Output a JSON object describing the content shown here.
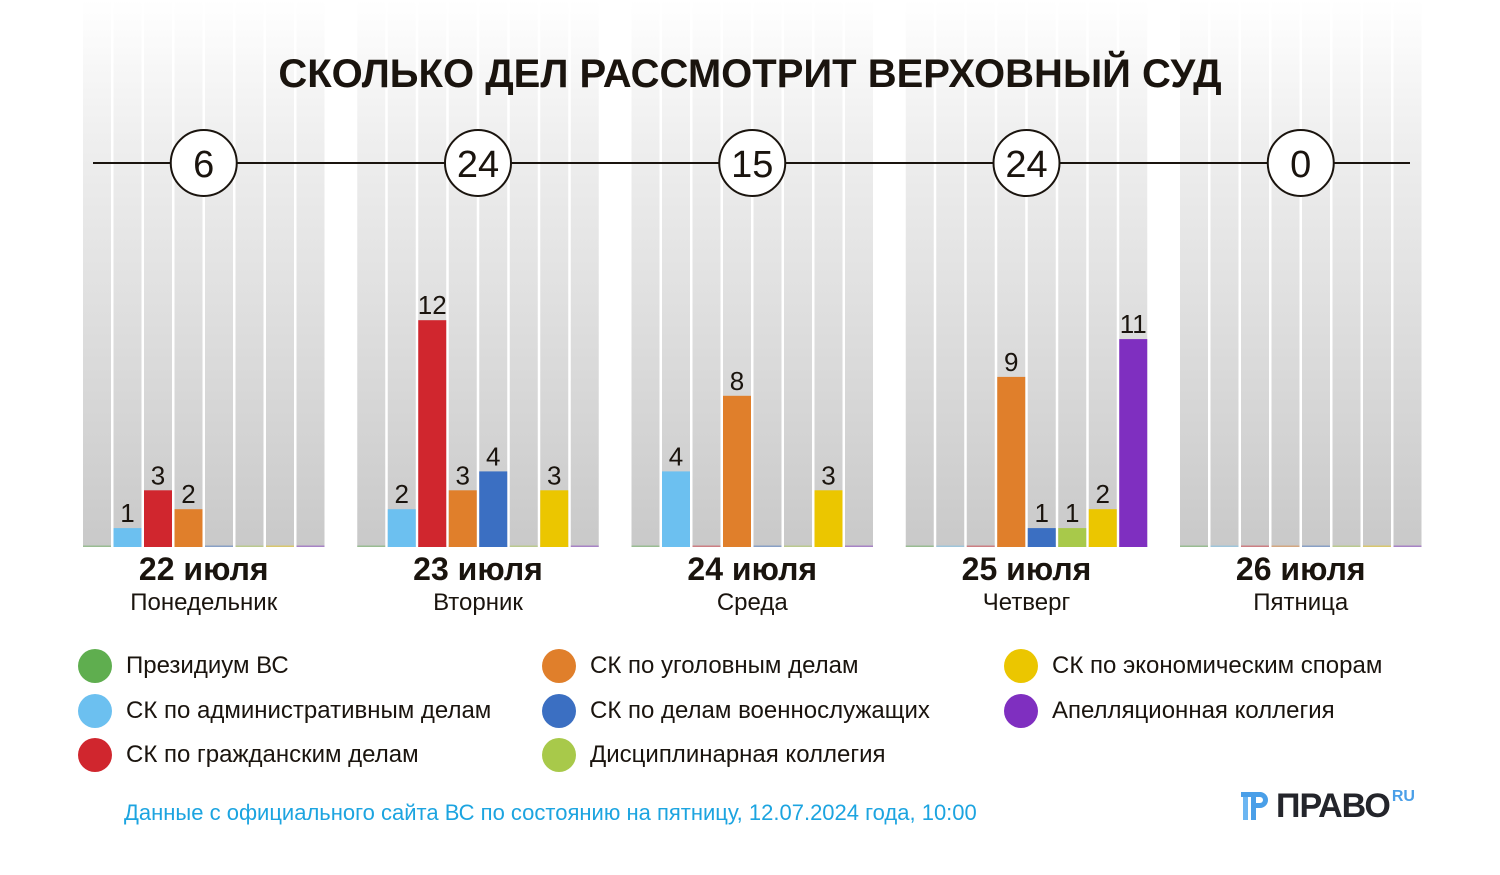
{
  "chart_data": {
    "type": "bar",
    "title": "СКОЛЬКО ДЕЛ РАССМОТРИТ ВЕРХОВНЫЙ СУД",
    "xlabel": "",
    "ylabel": "",
    "categories": [
      {
        "date": "22 июля",
        "weekday": "Понедельник",
        "total": "6"
      },
      {
        "date": "23 июля",
        "weekday": "Вторник",
        "total": "24"
      },
      {
        "date": "24 июля",
        "weekday": "Среда",
        "total": "15"
      },
      {
        "date": "25 июля",
        "weekday": "Четверг",
        "total": "24"
      },
      {
        "date": "26 июля",
        "weekday": "Пятница",
        "total": "0"
      }
    ],
    "series": [
      {
        "name": "Президиум ВС",
        "color": "#5fae4f",
        "values": [
          0,
          0,
          0,
          0,
          0
        ]
      },
      {
        "name": "СК по административным делам",
        "color": "#6cc0f0",
        "values": [
          1,
          2,
          4,
          0,
          0
        ]
      },
      {
        "name": "СК по гражданским делам",
        "color": "#d0262e",
        "values": [
          3,
          12,
          0,
          0,
          0
        ]
      },
      {
        "name": "СК по уголовным делам",
        "color": "#e07f2b",
        "values": [
          2,
          3,
          8,
          9,
          0
        ]
      },
      {
        "name": "СК по делам военнослужащих",
        "color": "#3b6fc2",
        "values": [
          0,
          4,
          0,
          1,
          0
        ]
      },
      {
        "name": "Дисциплинарная коллегия",
        "color": "#a8c94a",
        "values": [
          0,
          0,
          0,
          1,
          0
        ]
      },
      {
        "name": "СК по экономическим спорам",
        "color": "#ebc600",
        "values": [
          0,
          3,
          3,
          2,
          0
        ]
      },
      {
        "name": "Апелляционная коллегия",
        "color": "#7f2fc0",
        "values": [
          0,
          0,
          0,
          11,
          0
        ]
      }
    ],
    "ylim": [
      0,
      12
    ],
    "grid": false,
    "legend_position": "bottom"
  },
  "source_note": "Данные с официального сайта ВС по состоянию на пятницу, 12.07.2024 года, 10:00",
  "logo": {
    "text": "ПРАВО",
    "suffix": "RU"
  }
}
